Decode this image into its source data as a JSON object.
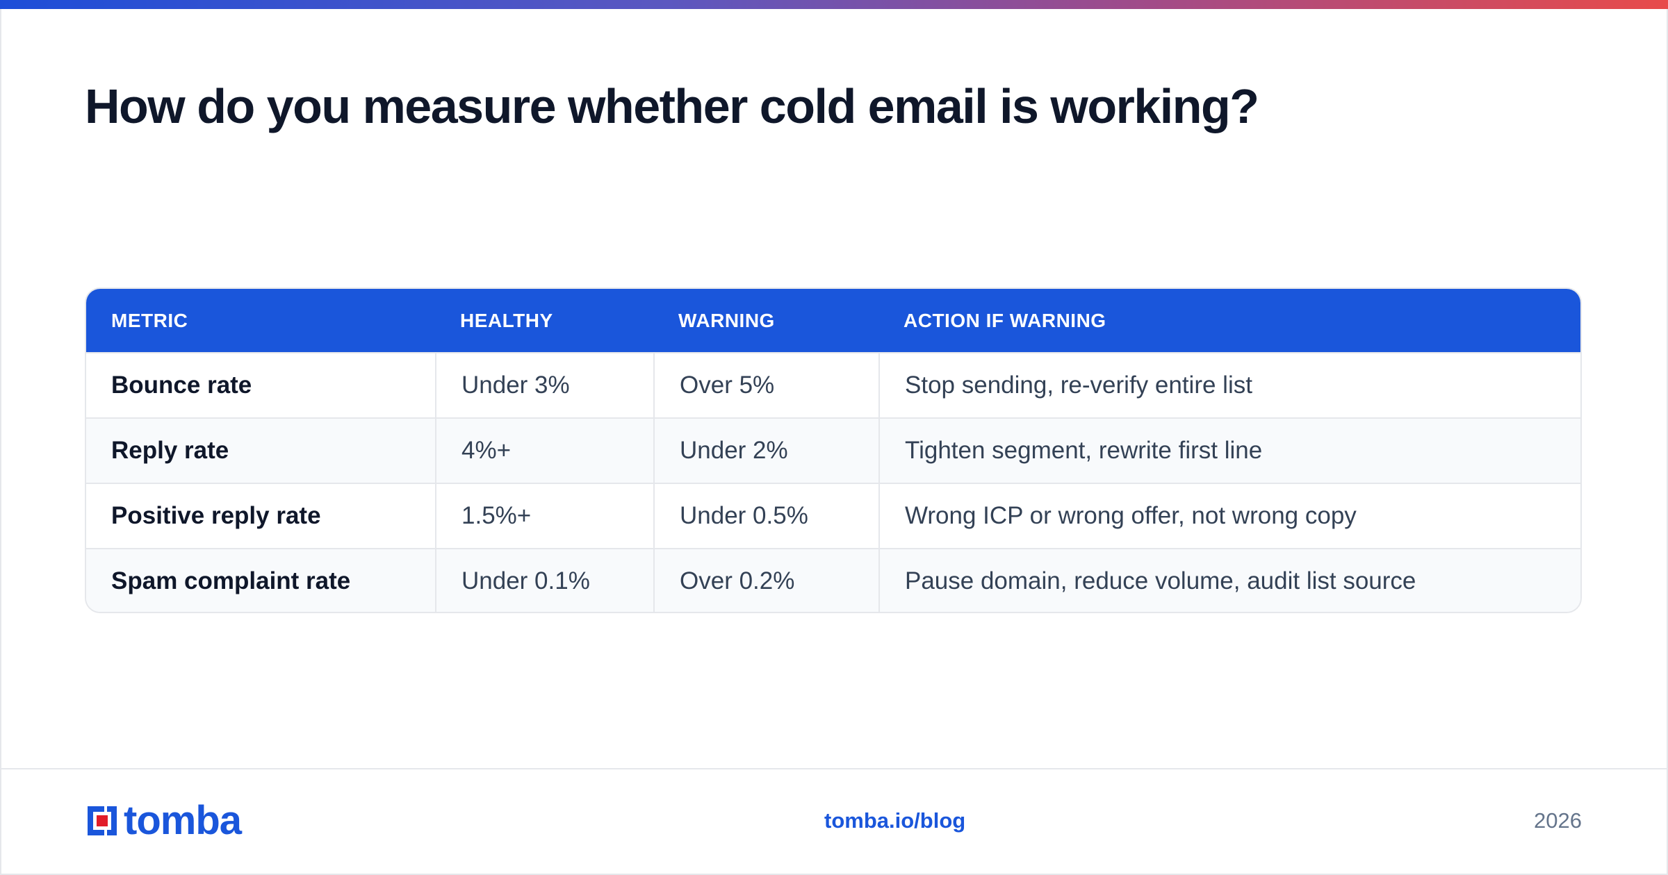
{
  "title": "How do you measure whether cold email is working?",
  "table": {
    "headers": [
      "METRIC",
      "HEALTHY",
      "WARNING",
      "ACTION IF WARNING"
    ],
    "rows": [
      {
        "metric": "Bounce rate",
        "healthy": "Under 3%",
        "warning": "Over 5%",
        "action": "Stop sending, re-verify entire list"
      },
      {
        "metric": "Reply rate",
        "healthy": "4%+",
        "warning": "Under 2%",
        "action": "Tighten segment, rewrite first line"
      },
      {
        "metric": "Positive reply rate",
        "healthy": "1.5%+",
        "warning": "Under 0.5%",
        "action": "Wrong ICP or wrong offer, not wrong copy"
      },
      {
        "metric": "Spam complaint rate",
        "healthy": "Under 0.1%",
        "warning": "Over 0.2%",
        "action": "Pause domain, reduce volume, audit list source"
      }
    ]
  },
  "footer": {
    "logo_text": "tomba",
    "link": "tomba.io/blog",
    "year": "2026"
  },
  "colors": {
    "accent": "#1a56db",
    "logo_red": "#e11d2a",
    "title": "#0f172a"
  },
  "icons": {
    "logo": "tomba-logo-icon"
  }
}
